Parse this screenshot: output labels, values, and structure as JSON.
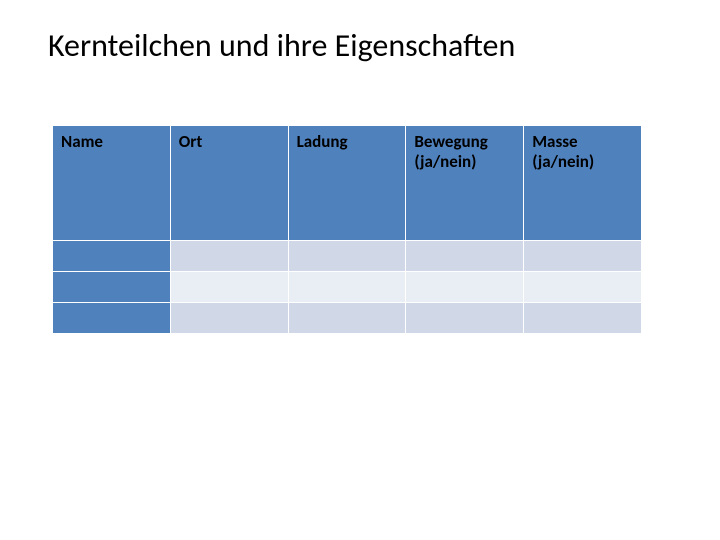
{
  "title": "Kernteilchen und ihre Eigenschaften",
  "table": {
    "columns": [
      {
        "label": "Name"
      },
      {
        "label": "Ort"
      },
      {
        "label": "Ladung"
      },
      {
        "label": "Bewegung (ja/nein)"
      },
      {
        "label": "Masse (ja/nein)"
      }
    ],
    "rows": [
      {
        "name": "",
        "cells": [
          "",
          "",
          "",
          ""
        ]
      },
      {
        "name": "",
        "cells": [
          "",
          "",
          "",
          ""
        ]
      },
      {
        "name": "",
        "cells": [
          "",
          "",
          "",
          ""
        ]
      }
    ],
    "header_bg": "#4f81bd",
    "row_label_bg": "#4f81bd",
    "row_alt_colors": [
      "#d0d8e8",
      "#e9edf4",
      "#d0d8e8"
    ],
    "header_fontsize": 17,
    "header_fontweight": 700,
    "title_fontsize": 32,
    "background_color": "#ffffff"
  }
}
